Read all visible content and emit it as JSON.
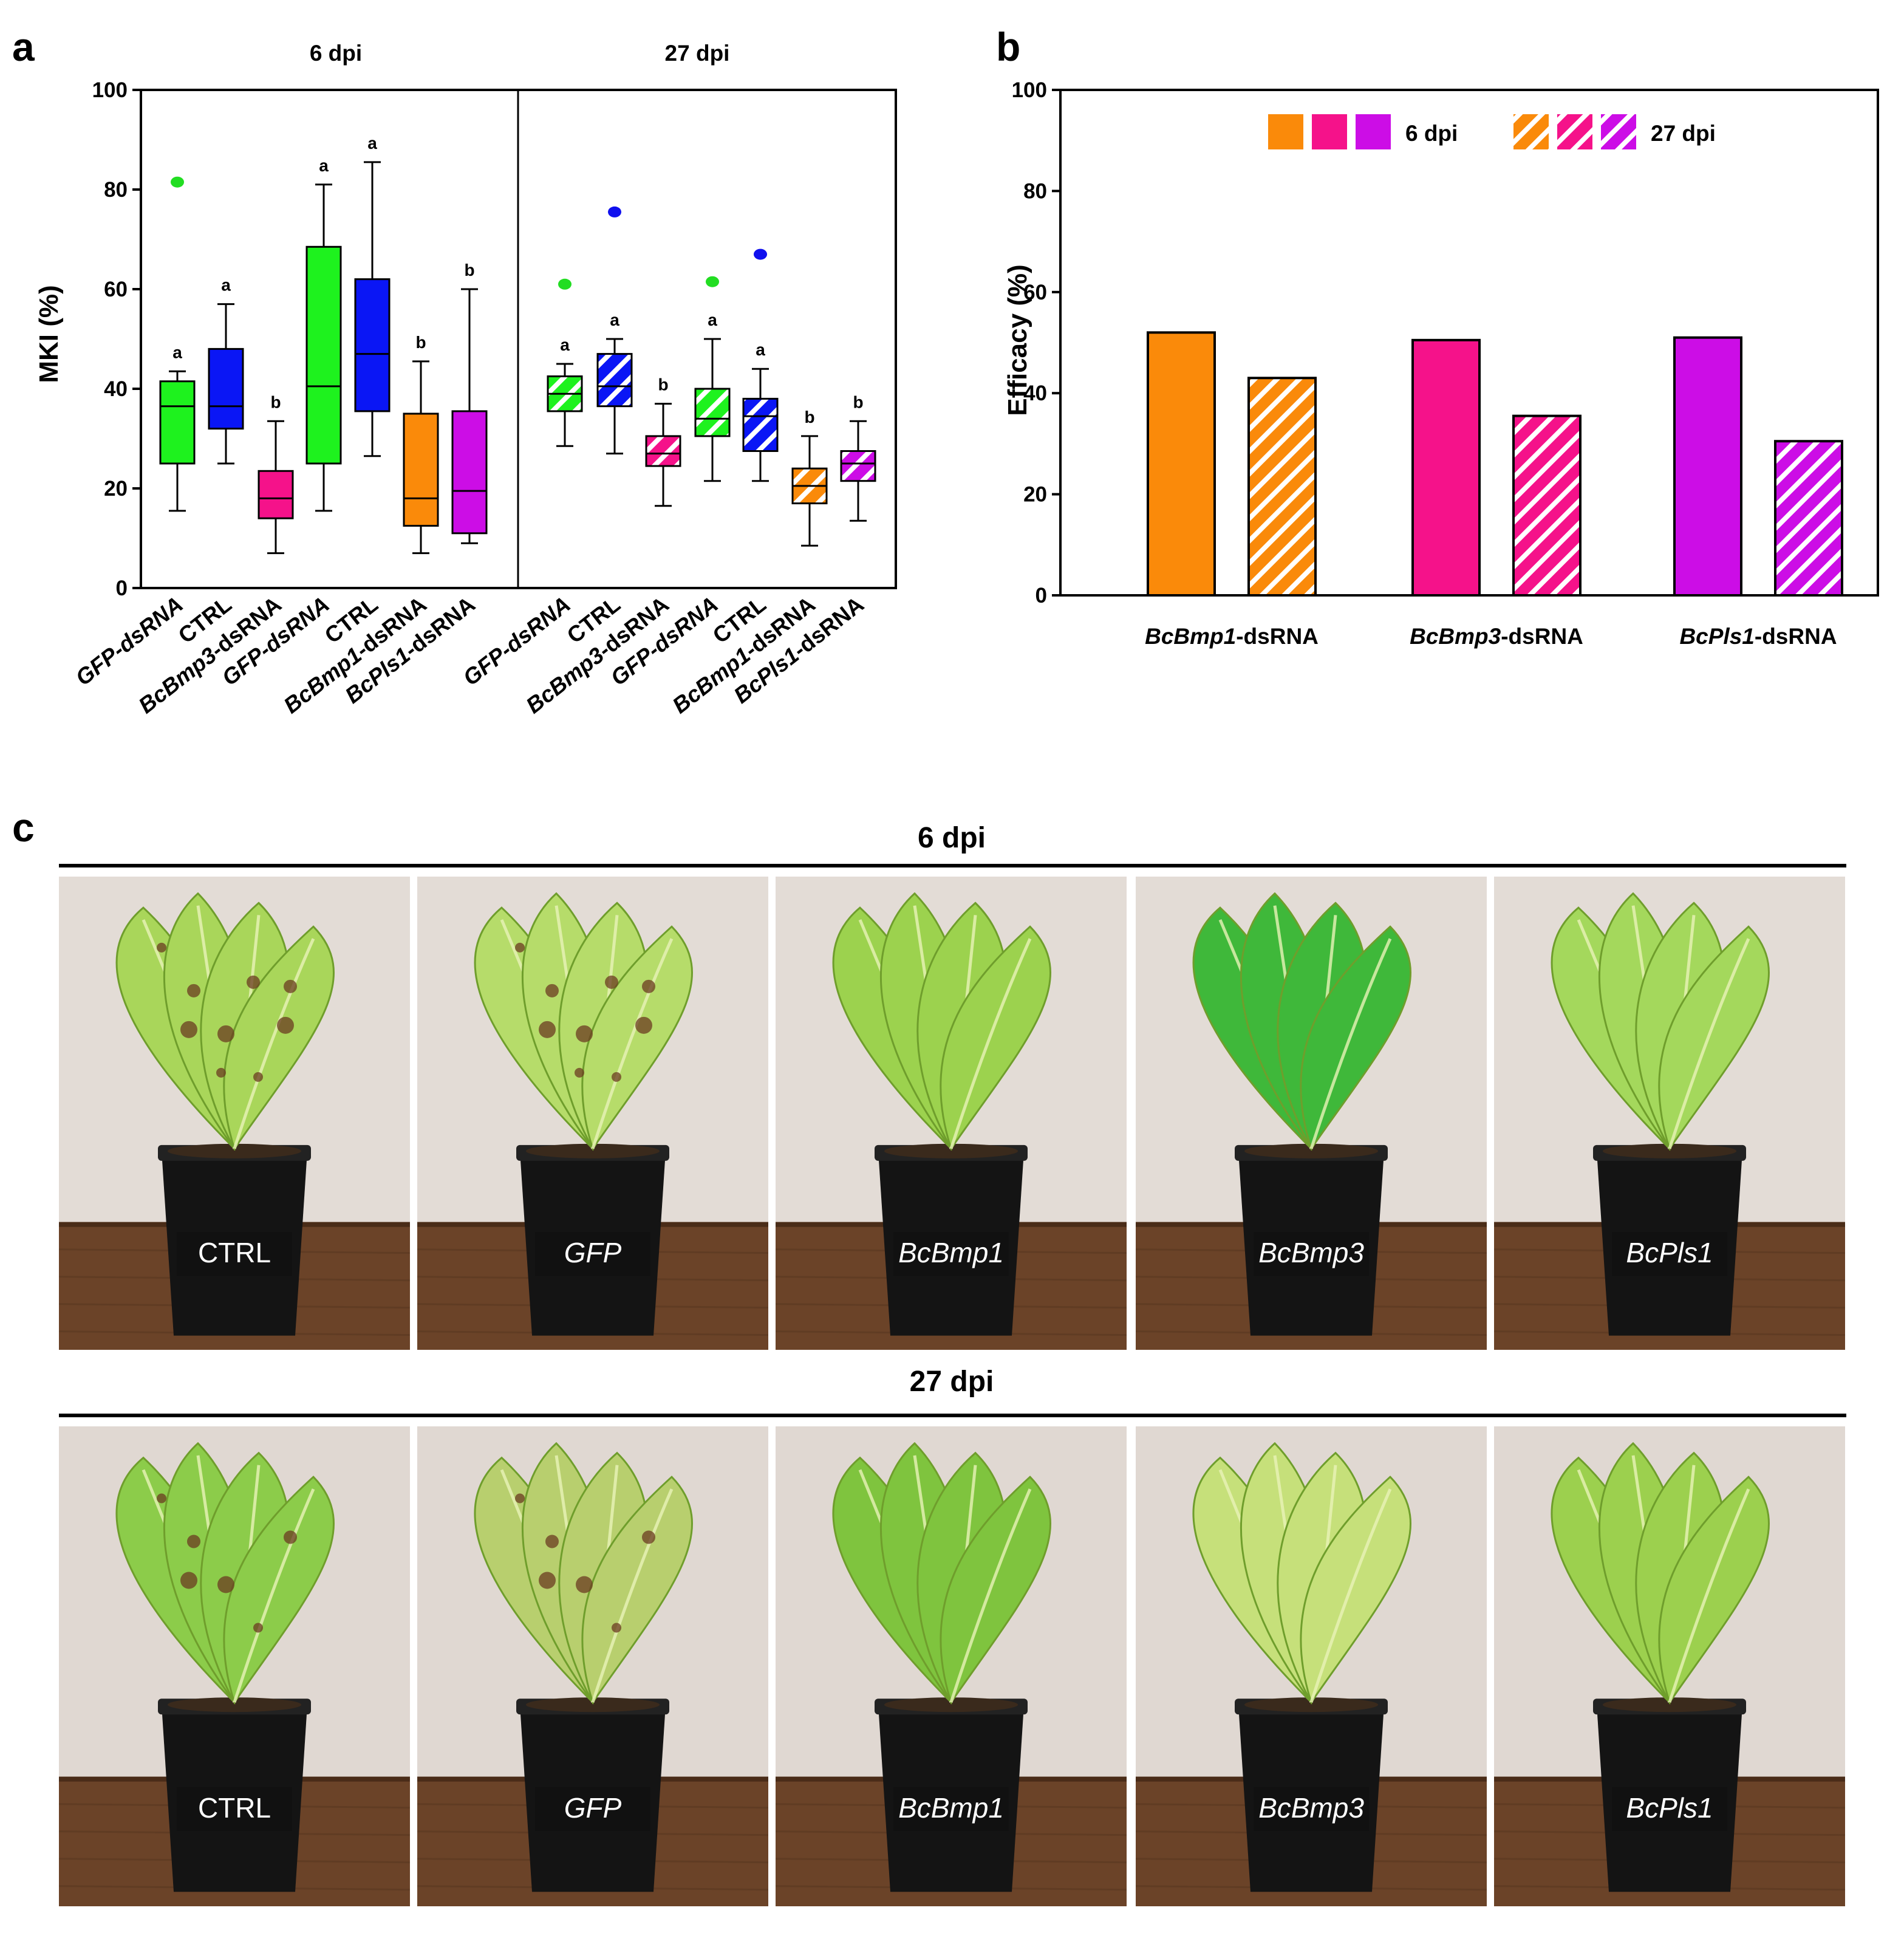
{
  "colors": {
    "green": "#1ef21e",
    "blue": "#0a16f5",
    "pink": "#f5128a",
    "orange": "#fa8a0a",
    "purple": "#cc0de6",
    "outlier_green": "#22dd22",
    "outlier_blue": "#1010ee"
  },
  "chart_data": [
    {
      "panel": "a",
      "type": "box",
      "ylabel": "MKI (%)",
      "ylim": [
        0,
        100
      ],
      "yticks": [
        0,
        20,
        40,
        60,
        80,
        100
      ],
      "groups": [
        {
          "title": "6 dpi",
          "boxes": [
            {
              "label": "GFP-dsRNA",
              "label_italic_full": true,
              "color": "green",
              "hatched": false,
              "min": 15.5,
              "q1": 25,
              "median": 36.5,
              "q3": 41.5,
              "max": 43.5,
              "outliers": [
                81.5
              ],
              "letter": "a"
            },
            {
              "label": "CTRL",
              "label_italic_full": false,
              "color": "blue",
              "hatched": false,
              "min": 25,
              "q1": 32,
              "median": 36.5,
              "q3": 48,
              "max": 57,
              "outliers": [],
              "letter": "a"
            },
            {
              "label": "BcBmp3-dsRNA",
              "gene": "BcBmp3",
              "suffix": "-dsRNA",
              "color": "pink",
              "hatched": false,
              "min": 7,
              "q1": 14,
              "median": 18,
              "q3": 23.5,
              "max": 33.5,
              "outliers": [],
              "letter": "b"
            },
            {
              "label": "GFP-dsRNA",
              "label_italic_full": true,
              "color": "green",
              "hatched": false,
              "min": 15.5,
              "q1": 25,
              "median": 40.5,
              "q3": 68.5,
              "max": 81,
              "outliers": [],
              "letter": "a"
            },
            {
              "label": "CTRL",
              "label_italic_full": false,
              "color": "blue",
              "hatched": false,
              "min": 26.5,
              "q1": 35.5,
              "median": 47,
              "q3": 62,
              "max": 85.5,
              "outliers": [],
              "letter": "a"
            },
            {
              "label": "BcBmp1-dsRNA",
              "gene": "BcBmp1",
              "suffix": "-dsRNA",
              "color": "orange",
              "hatched": false,
              "min": 7,
              "q1": 12.5,
              "median": 18,
              "q3": 35,
              "max": 45.5,
              "outliers": [],
              "letter": "b"
            },
            {
              "label": "BcPls1-dsRNA",
              "gene": "BcPls1",
              "suffix": "-dsRNA",
              "color": "purple",
              "hatched": false,
              "min": 9,
              "q1": 11,
              "median": 19.5,
              "q3": 35.5,
              "max": 60,
              "outliers": [],
              "letter": "b"
            }
          ]
        },
        {
          "title": "27 dpi",
          "boxes": [
            {
              "label": "GFP-dsRNA",
              "label_italic_full": true,
              "color": "green",
              "hatched": true,
              "min": 28.5,
              "q1": 35.5,
              "median": 39,
              "q3": 42.5,
              "max": 45,
              "outliers": [
                61
              ],
              "letter": "a"
            },
            {
              "label": "CTRL",
              "label_italic_full": false,
              "color": "blue",
              "hatched": true,
              "min": 27,
              "q1": 36.5,
              "median": 40.5,
              "q3": 47,
              "max": 50,
              "outliers": [
                75.5
              ],
              "letter": "a"
            },
            {
              "label": "BcBmp3-dsRNA",
              "gene": "BcBmp3",
              "suffix": "-dsRNA",
              "color": "pink",
              "hatched": true,
              "min": 16.5,
              "q1": 24.5,
              "median": 27,
              "q3": 30.5,
              "max": 37,
              "outliers": [],
              "letter": "b"
            },
            {
              "label": "GFP-dsRNA",
              "label_italic_full": true,
              "color": "green",
              "hatched": true,
              "min": 21.5,
              "q1": 30.5,
              "median": 34,
              "q3": 40,
              "max": 50,
              "outliers": [
                61.5
              ],
              "letter": "a"
            },
            {
              "label": "CTRL",
              "label_italic_full": false,
              "color": "blue",
              "hatched": true,
              "min": 21.5,
              "q1": 27.5,
              "median": 34.5,
              "q3": 38,
              "max": 44,
              "outliers": [
                67
              ],
              "letter": "a"
            },
            {
              "label": "BcBmp1-dsRNA",
              "gene": "BcBmp1",
              "suffix": "-dsRNA",
              "color": "orange",
              "hatched": true,
              "min": 8.5,
              "q1": 17,
              "median": 20.5,
              "q3": 24,
              "max": 30.5,
              "outliers": [],
              "letter": "b"
            },
            {
              "label": "BcPls1-dsRNA",
              "gene": "BcPls1",
              "suffix": "-dsRNA",
              "color": "purple",
              "hatched": true,
              "min": 13.5,
              "q1": 21.5,
              "median": 25,
              "q3": 27.5,
              "max": 33.5,
              "outliers": [],
              "letter": "b"
            }
          ]
        }
      ]
    },
    {
      "panel": "b",
      "type": "bar",
      "ylabel": "Efficacy (%)",
      "ylim": [
        0,
        100
      ],
      "yticks": [
        0,
        20,
        40,
        60,
        80,
        100
      ],
      "categories": [
        {
          "gene": "BcBmp1",
          "suffix": "-dsRNA",
          "color": "orange"
        },
        {
          "gene": "BcBmp3",
          "suffix": "-dsRNA",
          "color": "pink"
        },
        {
          "gene": "BcPls1",
          "suffix": "-dsRNA",
          "color": "purple"
        }
      ],
      "series": [
        {
          "name": "6 dpi",
          "hatched": false,
          "values": [
            52,
            50.5,
            51
          ]
        },
        {
          "name": "27 dpi",
          "hatched": true,
          "values": [
            43,
            35.5,
            30.5
          ]
        }
      ],
      "legend": {
        "position": "top",
        "labels": [
          "6 dpi",
          "27 dpi"
        ]
      }
    }
  ],
  "panel_a": {
    "letter": "a"
  },
  "panel_b": {
    "letter": "b"
  },
  "panel_c": {
    "letter": "c",
    "rows": [
      {
        "title": "6 dpi",
        "photos": [
          {
            "label": "CTRL",
            "italic": false,
            "plant": "wilting romaine lettuce with brown lesions"
          },
          {
            "label": "GFP",
            "italic": true,
            "plant": "collapsing romaine lettuce"
          },
          {
            "label": "BcBmp1",
            "italic": true,
            "plant": "healthy romaine lettuce"
          },
          {
            "label": "BcBmp3",
            "italic": true,
            "plant": "healthy leafy lettuce"
          },
          {
            "label": "BcPls1",
            "italic": true,
            "plant": "healthy romaine lettuce"
          }
        ]
      },
      {
        "title": "27 dpi",
        "photos": [
          {
            "label": "CTRL",
            "italic": false,
            "plant": "diseased lettuce"
          },
          {
            "label": "GFP",
            "italic": true,
            "plant": "severely diseased lettuce"
          },
          {
            "label": "BcBmp1",
            "italic": true,
            "plant": "healthy lettuce"
          },
          {
            "label": "BcBmp3",
            "italic": true,
            "plant": "mostly healthy lettuce"
          },
          {
            "label": "BcPls1",
            "italic": true,
            "plant": "mostly healthy lettuce"
          }
        ]
      }
    ]
  }
}
